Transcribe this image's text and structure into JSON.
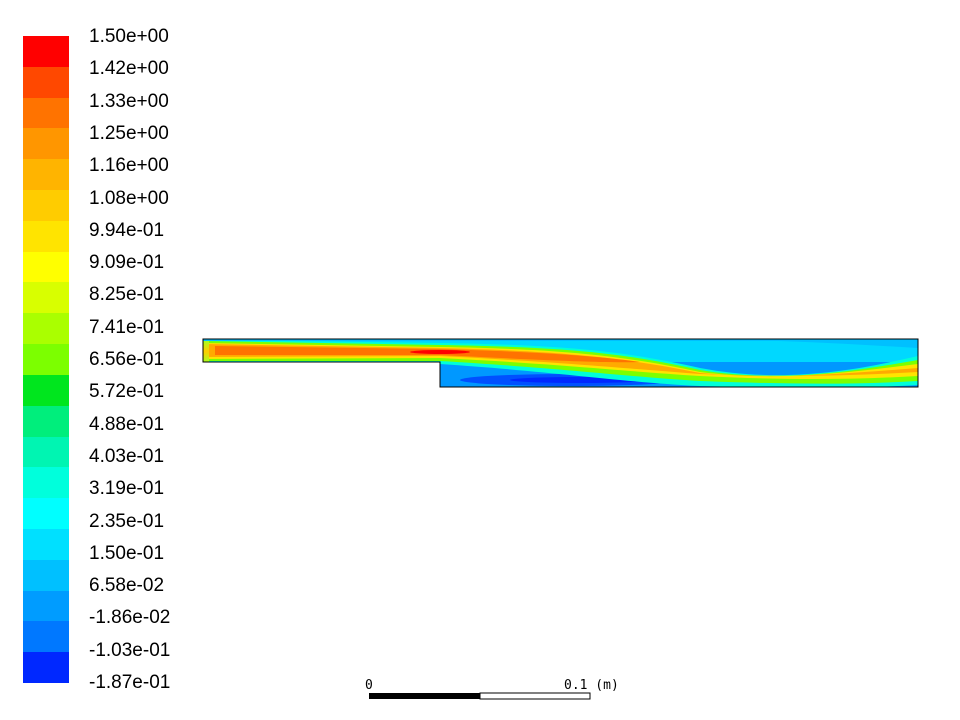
{
  "legend": {
    "labels": [
      "1.50e+00",
      "1.42e+00",
      "1.33e+00",
      "1.25e+00",
      "1.16e+00",
      "1.08e+00",
      "9.94e-01",
      "9.09e-01",
      "8.25e-01",
      "7.41e-01",
      "6.56e-01",
      "5.72e-01",
      "4.88e-01",
      "4.03e-01",
      "3.19e-01",
      "2.35e-01",
      "1.50e-01",
      "6.58e-02",
      "-1.86e-02",
      "-1.03e-01",
      "-1.87e-01"
    ],
    "colors": [
      "#ff0000",
      "#ff4800",
      "#ff7300",
      "#ff9600",
      "#ffb400",
      "#ffcc00",
      "#ffe400",
      "#ffff00",
      "#d8ff00",
      "#aaff00",
      "#7cff00",
      "#00e61e",
      "#00ee7c",
      "#00f5b2",
      "#00ffdc",
      "#00ffff",
      "#00e0ff",
      "#00c0ff",
      "#009cff",
      "#0078ff",
      "#0028ff"
    ]
  },
  "scale_bar": {
    "start_label": "0",
    "end_label": "0.1 (m)"
  }
}
